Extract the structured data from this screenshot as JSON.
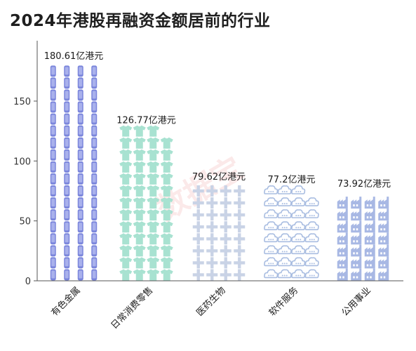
{
  "title": "2024年港股再融资金额居前的行业",
  "watermark": "数据宝",
  "chart_data": {
    "type": "bar",
    "title": "2024年港股再融资金额居前的行业",
    "xlabel": "",
    "ylabel": "",
    "ylim": [
      0,
      180
    ],
    "yticks": [
      0,
      50,
      100,
      150
    ],
    "grid": false,
    "categories": [
      "有色金属",
      "日常消费零售",
      "医药生物",
      "软件服务",
      "公用事业"
    ],
    "values": [
      180.61,
      126.77,
      79.62,
      77.2,
      73.92
    ],
    "value_labels": [
      "180.61亿港元",
      "126.77亿港元",
      "79.62亿港元",
      "77.2亿港元",
      "73.92亿港元"
    ],
    "icons": [
      "phone-icon",
      "tshirt-icon",
      "cross-icon",
      "cloud-icon",
      "factory-icon"
    ],
    "colors": [
      "#7b86dc",
      "#a8e2d1",
      "#c9d3e6",
      "#a9bde1",
      "#a8b8e4"
    ]
  }
}
